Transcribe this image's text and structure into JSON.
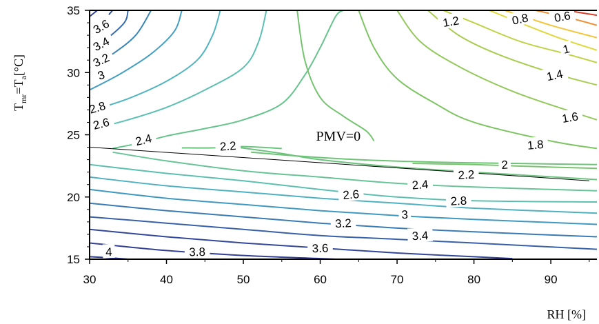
{
  "chart_data": {
    "type": "contour",
    "title": "",
    "xlabel": "RH [%]",
    "ylabel_main": "T",
    "ylabel_sub1": "mr",
    "ylabel_mid": "=T",
    "ylabel_sub2": "a",
    "ylabel_unit": "[°C]",
    "xlim": [
      30,
      96
    ],
    "ylim": [
      15,
      35
    ],
    "x_ticks": [
      "30",
      "40",
      "50",
      "60",
      "70",
      "80",
      "90"
    ],
    "y_ticks": [
      "15",
      "20",
      "25",
      "30",
      "35"
    ],
    "x_tick_values": [
      30,
      40,
      50,
      60,
      70,
      80,
      90
    ],
    "y_tick_values": [
      15,
      20,
      25,
      30,
      35
    ],
    "annotation": {
      "text": "PMV=0",
      "x": 60,
      "y": 24.2
    },
    "pmv_line": [
      [
        30,
        24.0
      ],
      [
        95,
        21.3
      ]
    ],
    "color_low": "#2c3e8f",
    "color_mid": "#66c07a",
    "color_high": "#d93a2a",
    "contours": [
      {
        "level": 4.0,
        "label": "4",
        "label_at": [
          32.5,
          15.6
        ],
        "angle": -2,
        "color": "#2e3a8c",
        "points": [
          [
            30,
            15.2
          ],
          [
            33,
            15.1
          ],
          [
            35,
            15.0
          ]
        ]
      },
      {
        "level": 3.8,
        "label": "3.8",
        "label_at": [
          44,
          15.6
        ],
        "angle": -1,
        "color": "#323f93",
        "points": [
          [
            30,
            16.3
          ],
          [
            40,
            15.7
          ],
          [
            50,
            15.3
          ],
          [
            60,
            15.05
          ],
          [
            62,
            15.0
          ]
        ]
      },
      {
        "level": 3.6,
        "label": "3.6",
        "label_at": [
          60,
          15.9
        ],
        "angle": -2,
        "color": "#33479a",
        "points": [
          [
            30,
            17.4
          ],
          [
            40,
            16.8
          ],
          [
            50,
            16.3
          ],
          [
            60,
            15.9
          ],
          [
            70,
            15.5
          ],
          [
            80,
            15.2
          ],
          [
            85,
            15.05
          ]
        ]
      },
      {
        "level": 3.4,
        "label": "3.4",
        "label_at": [
          73,
          16.9
        ],
        "angle": -3,
        "color": "#3760a8",
        "points": [
          [
            30,
            18.4
          ],
          [
            40,
            17.9
          ],
          [
            50,
            17.4
          ],
          [
            60,
            16.9
          ],
          [
            70,
            16.6
          ],
          [
            80,
            16.3
          ],
          [
            96,
            15.8
          ]
        ]
      },
      {
        "level": 3.2,
        "label": "3.2",
        "label_at": [
          63,
          17.9
        ],
        "angle": -3,
        "color": "#3a7bb4",
        "points": [
          [
            30,
            19.5
          ],
          [
            40,
            18.9
          ],
          [
            50,
            18.4
          ],
          [
            60,
            17.9
          ],
          [
            70,
            17.5
          ],
          [
            80,
            17.2
          ],
          [
            96,
            16.8
          ]
        ]
      },
      {
        "level": 3.0,
        "label": "3",
        "label_at": [
          71,
          18.6
        ],
        "angle": -3,
        "color": "#3f98c0",
        "points": [
          [
            30,
            20.6
          ],
          [
            40,
            19.9
          ],
          [
            50,
            19.4
          ],
          [
            60,
            18.9
          ],
          [
            70,
            18.5
          ],
          [
            80,
            18.2
          ],
          [
            96,
            17.8
          ]
        ]
      },
      {
        "level": 2.8,
        "label": "2.8",
        "label_at": [
          78,
          19.7
        ],
        "angle": -3,
        "color": "#4eb0c1",
        "points": [
          [
            30,
            21.6
          ],
          [
            40,
            20.9
          ],
          [
            50,
            20.4
          ],
          [
            60,
            19.9
          ],
          [
            70,
            19.5
          ],
          [
            80,
            19.1
          ],
          [
            96,
            18.7
          ]
        ]
      },
      {
        "level": 2.6,
        "label": "2.6",
        "label_at": [
          64,
          20.2
        ],
        "angle": -4,
        "color": "#5cbfb0",
        "points": [
          [
            30,
            22.6
          ],
          [
            40,
            21.9
          ],
          [
            50,
            21.3
          ],
          [
            60,
            20.6
          ],
          [
            70,
            20.0
          ],
          [
            80,
            19.7
          ],
          [
            96,
            19.6
          ]
        ]
      },
      {
        "level": 2.4,
        "label": "2.4",
        "label_at": [
          73,
          21.0
        ],
        "angle": -4,
        "color": "#66c497",
        "points": [
          [
            33,
            23.6
          ],
          [
            40,
            22.9
          ],
          [
            50,
            22.1
          ],
          [
            60,
            21.6
          ],
          [
            70,
            21.1
          ],
          [
            80,
            20.8
          ],
          [
            96,
            20.5
          ]
        ]
      },
      {
        "level": 2.2,
        "label": "2.2",
        "label_at": [
          79,
          21.8
        ],
        "angle": -3,
        "color": "#6cc37e",
        "points": [
          [
            48,
            24.1
          ],
          [
            55,
            23.5
          ],
          [
            60,
            23.0
          ],
          [
            70,
            22.4
          ],
          [
            80,
            22.0
          ],
          [
            96,
            21.4
          ]
        ]
      },
      {
        "level": 2.2,
        "label": "2.2",
        "label_at": [
          48,
          24.1
        ],
        "angle": -4,
        "color": "#6cc37e",
        "points": [
          [
            42,
            23.95
          ],
          [
            46,
            23.95
          ],
          [
            50,
            24.05
          ],
          [
            55,
            23.9
          ]
        ]
      },
      {
        "level": 2.4,
        "label": "2.4",
        "label_at": [
          37,
          24.6
        ],
        "angle": -14,
        "color": "#66c38b",
        "points": [
          [
            33,
            23.9
          ],
          [
            37,
            24.4
          ],
          [
            40,
            24.9
          ],
          [
            45,
            25.5
          ],
          [
            50,
            26.2
          ],
          [
            55,
            27.5
          ],
          [
            58,
            29.8
          ],
          [
            60,
            32.0
          ],
          [
            62,
            34.5
          ],
          [
            63,
            35.0
          ]
        ]
      },
      {
        "level": 2.2,
        "label": "",
        "label_at": [
          0,
          0
        ],
        "angle": 0,
        "color": "#6ec377",
        "points": [
          [
            51,
            23.6
          ],
          [
            57,
            23.3
          ],
          [
            65,
            23.0
          ],
          [
            75,
            22.8
          ],
          [
            85,
            22.7
          ],
          [
            96,
            22.6
          ]
        ]
      },
      {
        "level": 2.0,
        "label": "2",
        "label_at": [
          84,
          22.6
        ],
        "angle": -3,
        "color": "#78c56e",
        "points": [
          [
            72,
            22.7
          ],
          [
            80,
            22.6
          ],
          [
            90,
            22.4
          ],
          [
            96,
            22.3
          ]
        ]
      },
      {
        "level": 2.0,
        "label": "",
        "label_at": [
          0,
          0
        ],
        "angle": 0,
        "color": "#74c46f",
        "points": [
          [
            57,
            35.0
          ],
          [
            58,
            31.0
          ],
          [
            60,
            28.0
          ],
          [
            63,
            26.5
          ],
          [
            66,
            25.3
          ],
          [
            67,
            24.5
          ]
        ]
      },
      {
        "level": 1.8,
        "label": "1.8",
        "label_at": [
          88,
          24.2
        ],
        "angle": -5,
        "color": "#7dc462",
        "points": [
          [
            65,
            35.0
          ],
          [
            67,
            32.0
          ],
          [
            70,
            29.5
          ],
          [
            75,
            27.5
          ],
          [
            80,
            26.0
          ],
          [
            90,
            24.5
          ],
          [
            96,
            23.9
          ]
        ]
      },
      {
        "level": 1.6,
        "label": "1.6",
        "label_at": [
          92.5,
          26.4
        ],
        "angle": -10,
        "color": "#93c85a",
        "points": [
          [
            70,
            35.0
          ],
          [
            73,
            32.5
          ],
          [
            78,
            30.5
          ],
          [
            85,
            28.5
          ],
          [
            92,
            27.0
          ],
          [
            96,
            26.2
          ]
        ]
      },
      {
        "level": 1.4,
        "label": "1.4",
        "label_at": [
          90.5,
          29.8
        ],
        "angle": -12,
        "color": "#a8cc4f",
        "points": [
          [
            74,
            35.0
          ],
          [
            78,
            33.0
          ],
          [
            83,
            31.5
          ],
          [
            90,
            30.0
          ],
          [
            96,
            29.0
          ]
        ]
      },
      {
        "level": 1.2,
        "label": "1.2",
        "label_at": [
          77,
          34.1
        ],
        "angle": -10,
        "color": "#c0d243",
        "points": [
          [
            76,
            35.0
          ],
          [
            80,
            34.0
          ],
          [
            86,
            32.5
          ],
          [
            92,
            31.5
          ],
          [
            96,
            30.8
          ]
        ]
      },
      {
        "level": 1.0,
        "label": "1",
        "label_at": [
          92,
          31.9
        ],
        "angle": -14,
        "color": "#e0d83a",
        "points": [
          [
            82,
            35.0
          ],
          [
            86,
            34.0
          ],
          [
            91,
            32.8
          ],
          [
            96,
            31.8
          ]
        ]
      },
      {
        "level": 0.8,
        "label": "0.8",
        "label_at": [
          86,
          34.3
        ],
        "angle": -12,
        "color": "#f3c53a",
        "points": [
          [
            84,
            35.0
          ],
          [
            90,
            33.8
          ],
          [
            96,
            32.8
          ]
        ]
      },
      {
        "level": 0.6,
        "label": "0.6",
        "label_at": [
          91.5,
          34.5
        ],
        "angle": -10,
        "color": "#f0913a",
        "points": [
          [
            88,
            35.0
          ],
          [
            93,
            34.3
          ],
          [
            96,
            33.8
          ]
        ]
      },
      {
        "level": 0.4,
        "label": "",
        "label_at": [
          0,
          0
        ],
        "angle": 0,
        "color": "#dc3c2a",
        "points": [
          [
            92,
            35.0
          ],
          [
            96,
            34.6
          ]
        ]
      },
      {
        "level": 2.6,
        "label": "2.6",
        "label_at": [
          31.5,
          25.9
        ],
        "angle": -14,
        "color": "#5bbfb2",
        "points": [
          [
            30,
            25.4
          ],
          [
            35,
            26.2
          ],
          [
            40,
            27.2
          ],
          [
            45,
            28.6
          ],
          [
            50,
            30.4
          ],
          [
            52,
            32.5
          ],
          [
            53,
            35.0
          ]
        ]
      },
      {
        "level": 2.8,
        "label": "2.8",
        "label_at": [
          31,
          27.2
        ],
        "angle": -16,
        "color": "#51b5c0",
        "points": [
          [
            30,
            26.9
          ],
          [
            35,
            27.9
          ],
          [
            40,
            29.3
          ],
          [
            44,
            31.0
          ],
          [
            46,
            33.0
          ],
          [
            47,
            35.0
          ]
        ]
      },
      {
        "level": 3.0,
        "label": "3",
        "label_at": [
          31.5,
          29.8
        ],
        "angle": -20,
        "color": "#449fc2",
        "points": [
          [
            30,
            28.6
          ],
          [
            34,
            29.9
          ],
          [
            38,
            31.5
          ],
          [
            41,
            33.3
          ],
          [
            42,
            35.0
          ]
        ]
      },
      {
        "level": 3.2,
        "label": "3.2",
        "label_at": [
          31.5,
          31.0
        ],
        "angle": -25,
        "color": "#3c86b8",
        "points": [
          [
            30,
            30.4
          ],
          [
            33,
            31.5
          ],
          [
            36,
            33.0
          ],
          [
            38,
            35.0
          ]
        ]
      },
      {
        "level": 3.4,
        "label": "3.4",
        "label_at": [
          31.5,
          32.3
        ],
        "angle": -28,
        "color": "#376daf",
        "points": [
          [
            30,
            31.8
          ],
          [
            32,
            32.6
          ],
          [
            34.5,
            34.0
          ],
          [
            35,
            35.0
          ]
        ]
      },
      {
        "level": 3.6,
        "label": "3.6",
        "label_at": [
          31.5,
          33.7
        ],
        "angle": -30,
        "color": "#3454a0",
        "points": [
          [
            30,
            33.2
          ],
          [
            31.5,
            34.0
          ],
          [
            33,
            35.0
          ]
        ]
      },
      {
        "level": 3.8,
        "label": "",
        "label_at": [
          0,
          0
        ],
        "angle": 0,
        "color": "#31419a",
        "points": [
          [
            30,
            34.5
          ],
          [
            31,
            35.0
          ]
        ]
      }
    ]
  }
}
